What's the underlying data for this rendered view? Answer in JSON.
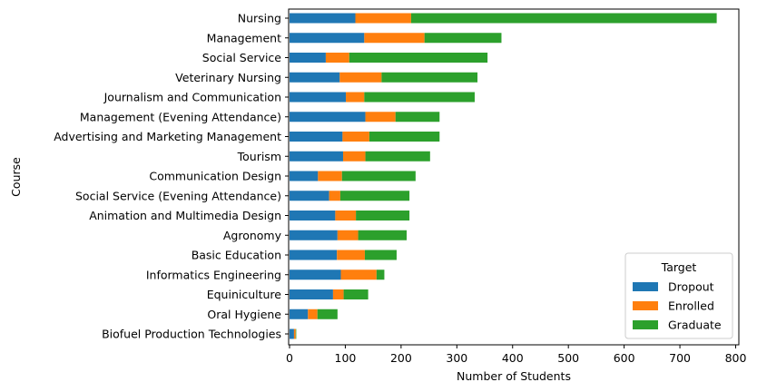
{
  "chart_data": {
    "type": "bar",
    "orientation": "horizontal",
    "stacked": true,
    "xlabel": "Number of Students",
    "ylabel": "Course",
    "xlim": [
      0,
      800
    ],
    "xticks": [
      0,
      100,
      200,
      300,
      400,
      500,
      600,
      700,
      800
    ],
    "grid": false,
    "categories": [
      "Nursing",
      "Management",
      "Social Service",
      "Veterinary Nursing",
      "Journalism and Communication",
      "Management (Evening Attendance)",
      "Advertising and Marketing Management",
      "Tourism",
      "Communication Design",
      "Social Service (Evening Attendance)",
      "Animation and Multimedia Design",
      "Agronomy",
      "Basic Education",
      "Informatics Engineering",
      "Equiniculture",
      "Oral Hygiene",
      "Biofuel Production Technologies"
    ],
    "series": [
      {
        "name": "Dropout",
        "color": "#1f77b4",
        "values": [
          118,
          134,
          65,
          90,
          101,
          136,
          95,
          96,
          51,
          71,
          82,
          86,
          85,
          92,
          78,
          33,
          8
        ]
      },
      {
        "name": "Enrolled",
        "color": "#ff7f0e",
        "values": [
          100,
          108,
          42,
          75,
          33,
          54,
          48,
          40,
          43,
          20,
          37,
          37,
          50,
          64,
          19,
          17,
          3
        ]
      },
      {
        "name": "Graduate",
        "color": "#2ca02c",
        "values": [
          548,
          138,
          248,
          172,
          198,
          79,
          126,
          116,
          132,
          124,
          96,
          87,
          57,
          14,
          44,
          36,
          1
        ]
      }
    ],
    "legend": {
      "title": "Target",
      "position": "lower-right"
    }
  }
}
